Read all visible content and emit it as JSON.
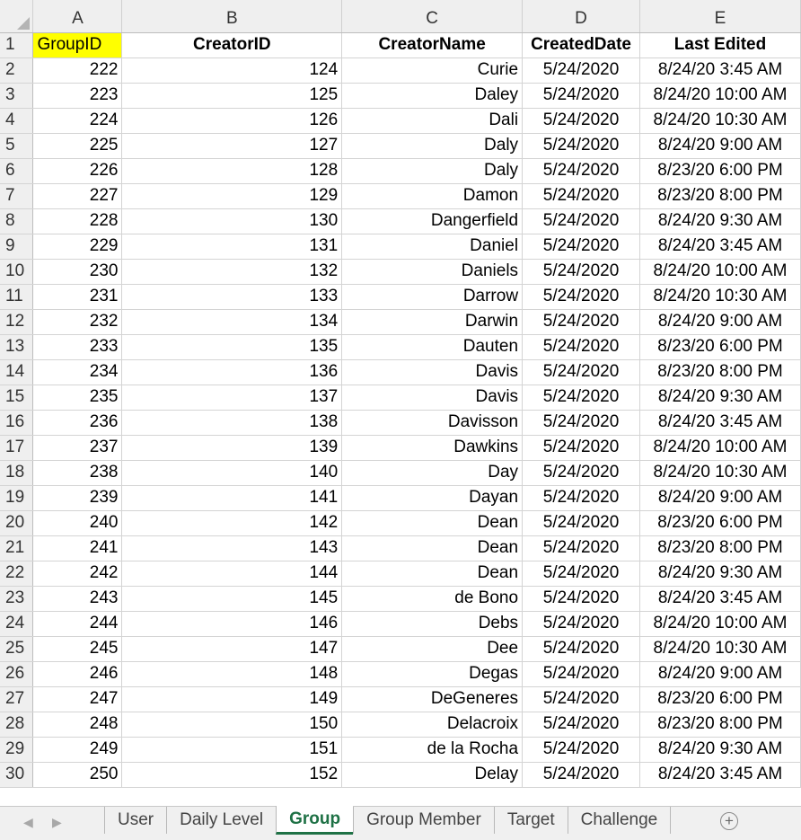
{
  "grid": {
    "column_letters": [
      "A",
      "B",
      "C",
      "D",
      "E"
    ],
    "header_row_number": "1",
    "headers": [
      "GroupID",
      "CreatorID",
      "CreatorName",
      "CreatedDate",
      "Last Edited"
    ],
    "rows": [
      [
        "2",
        "222",
        "124",
        "Curie",
        "5/24/2020",
        "8/24/20 3:45 AM"
      ],
      [
        "3",
        "223",
        "125",
        "Daley",
        "5/24/2020",
        "8/24/20 10:00 AM"
      ],
      [
        "4",
        "224",
        "126",
        "Dali",
        "5/24/2020",
        "8/24/20 10:30 AM"
      ],
      [
        "5",
        "225",
        "127",
        "Daly",
        "5/24/2020",
        "8/24/20 9:00 AM"
      ],
      [
        "6",
        "226",
        "128",
        "Daly",
        "5/24/2020",
        "8/23/20 6:00 PM"
      ],
      [
        "7",
        "227",
        "129",
        "Damon",
        "5/24/2020",
        "8/23/20 8:00 PM"
      ],
      [
        "8",
        "228",
        "130",
        "Dangerfield",
        "5/24/2020",
        "8/24/20 9:30 AM"
      ],
      [
        "9",
        "229",
        "131",
        "Daniel",
        "5/24/2020",
        "8/24/20 3:45 AM"
      ],
      [
        "10",
        "230",
        "132",
        "Daniels",
        "5/24/2020",
        "8/24/20 10:00 AM"
      ],
      [
        "11",
        "231",
        "133",
        "Darrow",
        "5/24/2020",
        "8/24/20 10:30 AM"
      ],
      [
        "12",
        "232",
        "134",
        "Darwin",
        "5/24/2020",
        "8/24/20 9:00 AM"
      ],
      [
        "13",
        "233",
        "135",
        "Dauten",
        "5/24/2020",
        "8/23/20 6:00 PM"
      ],
      [
        "14",
        "234",
        "136",
        "Davis",
        "5/24/2020",
        "8/23/20 8:00 PM"
      ],
      [
        "15",
        "235",
        "137",
        "Davis",
        "5/24/2020",
        "8/24/20 9:30 AM"
      ],
      [
        "16",
        "236",
        "138",
        "Davisson",
        "5/24/2020",
        "8/24/20 3:45 AM"
      ],
      [
        "17",
        "237",
        "139",
        "Dawkins",
        "5/24/2020",
        "8/24/20 10:00 AM"
      ],
      [
        "18",
        "238",
        "140",
        "Day",
        "5/24/2020",
        "8/24/20 10:30 AM"
      ],
      [
        "19",
        "239",
        "141",
        "Dayan",
        "5/24/2020",
        "8/24/20 9:00 AM"
      ],
      [
        "20",
        "240",
        "142",
        "Dean",
        "5/24/2020",
        "8/23/20 6:00 PM"
      ],
      [
        "21",
        "241",
        "143",
        "Dean",
        "5/24/2020",
        "8/23/20 8:00 PM"
      ],
      [
        "22",
        "242",
        "144",
        "Dean",
        "5/24/2020",
        "8/24/20 9:30 AM"
      ],
      [
        "23",
        "243",
        "145",
        "de Bono",
        "5/24/2020",
        "8/24/20 3:45 AM"
      ],
      [
        "24",
        "244",
        "146",
        "Debs",
        "5/24/2020",
        "8/24/20 10:00 AM"
      ],
      [
        "25",
        "245",
        "147",
        "Dee",
        "5/24/2020",
        "8/24/20 10:30 AM"
      ],
      [
        "26",
        "246",
        "148",
        "Degas",
        "5/24/2020",
        "8/24/20 9:00 AM"
      ],
      [
        "27",
        "247",
        "149",
        "DeGeneres",
        "5/24/2020",
        "8/23/20 6:00 PM"
      ],
      [
        "28",
        "248",
        "150",
        "Delacroix",
        "5/24/2020",
        "8/23/20 8:00 PM"
      ],
      [
        "29",
        "249",
        "151",
        "de la Rocha",
        "5/24/2020",
        "8/24/20 9:30 AM"
      ],
      [
        "30",
        "250",
        "152",
        "Delay",
        "5/24/2020",
        "8/24/20 3:45 AM"
      ]
    ]
  },
  "sheet_tabs": {
    "tabs": [
      "User",
      "Daily Level",
      "Group",
      "Group Member",
      "Target",
      "Challenge"
    ],
    "active_index": 2,
    "prev_glyph": "◀",
    "next_glyph": "▶",
    "add_glyph": "+"
  },
  "colors": {
    "highlight": "#ffff00",
    "active_tab_text": "#1e7145",
    "header_bg": "#efefef",
    "gridline": "#d4d4d4"
  }
}
